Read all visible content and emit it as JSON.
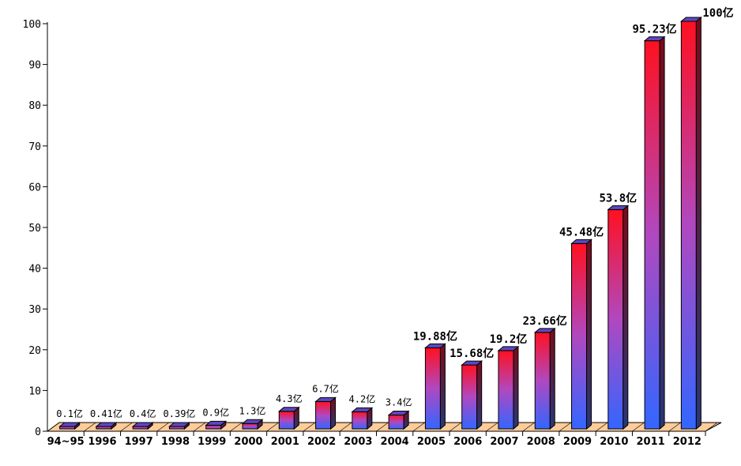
{
  "chart_data": {
    "type": "bar",
    "title": "",
    "xlabel": "",
    "ylabel": "",
    "ylim": [
      0,
      100
    ],
    "yticks": [
      "0",
      "10",
      "20",
      "30",
      "40",
      "50",
      "60",
      "70",
      "80",
      "90",
      "100"
    ],
    "categories": [
      "94~95",
      "1996",
      "1997",
      "1998",
      "1999",
      "2000",
      "2001",
      "2002",
      "2003",
      "2004",
      "2005",
      "2006",
      "2007",
      "2008",
      "2009",
      "2010",
      "2011",
      "2012"
    ],
    "values": [
      0.1,
      0.41,
      0.4,
      0.39,
      0.9,
      1.3,
      4.3,
      6.7,
      4.2,
      3.4,
      19.88,
      15.68,
      19.2,
      23.66,
      45.48,
      53.8,
      95.23,
      100
    ],
    "data_labels": [
      "0.1亿",
      "0.41亿",
      "0.4亿",
      "0.39亿",
      "0.9亿",
      "1.3亿",
      "4.3亿",
      "6.7亿",
      "4.2亿",
      "3.4亿",
      "19.88亿",
      "15.68亿",
      "19.2亿",
      "23.66亿",
      "45.48亿",
      "53.8亿",
      "95.23亿",
      "100亿"
    ],
    "grid": false,
    "colors": {
      "bar_top": "#ff1020",
      "bar_bottom": "#3366ff",
      "floor": "#ffcc99",
      "highlight_label": "#ff0000"
    }
  }
}
